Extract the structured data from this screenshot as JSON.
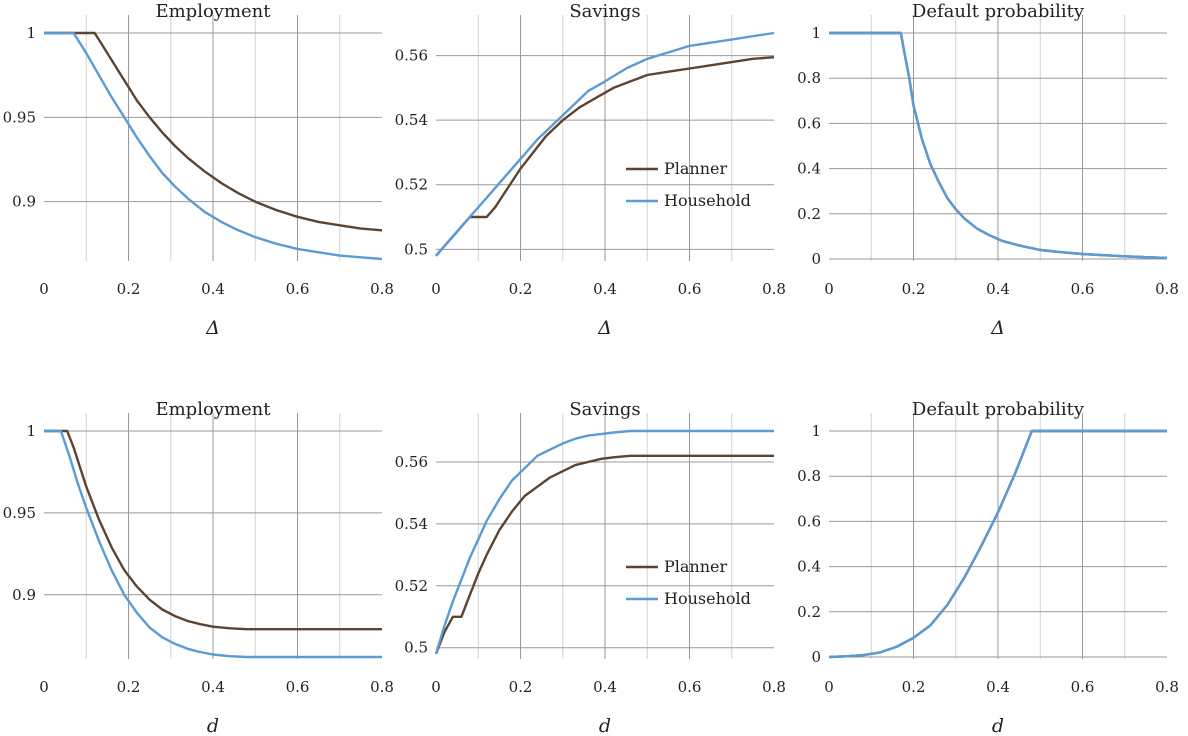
{
  "colors": {
    "planner": "#5c4431",
    "household": "#5b9bd5",
    "grid_major": "#999999",
    "grid_minor": "#d4d4d4"
  },
  "chart_data": [
    {
      "type": "line",
      "title": "Employment",
      "xlabel": "Δ",
      "ylabel": "",
      "xlim": [
        0,
        0.8
      ],
      "ylim": [
        0.866,
        1.0
      ],
      "xticks": [
        0,
        0.2,
        0.4,
        0.6,
        0.8
      ],
      "xtick_labels": [
        "0",
        "0.2",
        "0.4",
        "0.6",
        "0.8"
      ],
      "yticks": [
        0.9,
        0.95,
        1.0
      ],
      "ytick_labels": [
        "0.9",
        "0.95",
        "1"
      ],
      "grid": true,
      "legend": null,
      "series": [
        {
          "color": "#5c4431",
          "x": [
            0,
            0.12,
            0.14,
            0.16,
            0.18,
            0.2,
            0.22,
            0.25,
            0.28,
            0.31,
            0.34,
            0.38,
            0.42,
            0.46,
            0.5,
            0.55,
            0.6,
            0.65,
            0.7,
            0.75,
            0.8
          ],
          "y": [
            1.0,
            1.0,
            0.992,
            0.984,
            0.976,
            0.968,
            0.96,
            0.95,
            0.941,
            0.933,
            0.926,
            0.918,
            0.911,
            0.905,
            0.9,
            0.895,
            0.891,
            0.888,
            0.886,
            0.884,
            0.883
          ]
        },
        {
          "color": "#5b9bd5",
          "x": [
            0,
            0.07,
            0.1,
            0.13,
            0.16,
            0.19,
            0.22,
            0.25,
            0.28,
            0.31,
            0.34,
            0.38,
            0.42,
            0.46,
            0.5,
            0.55,
            0.6,
            0.65,
            0.7,
            0.75,
            0.8
          ],
          "y": [
            1.0,
            1.0,
            0.988,
            0.975,
            0.962,
            0.95,
            0.938,
            0.927,
            0.917,
            0.909,
            0.902,
            0.894,
            0.888,
            0.883,
            0.879,
            0.875,
            0.872,
            0.87,
            0.868,
            0.867,
            0.866
          ]
        }
      ]
    },
    {
      "type": "line",
      "title": "Savings",
      "xlabel": "Δ",
      "ylabel": "",
      "xlim": [
        0,
        0.8
      ],
      "ylim": [
        0.497,
        0.567
      ],
      "xticks": [
        0,
        0.2,
        0.4,
        0.6,
        0.8
      ],
      "xtick_labels": [
        "0",
        "0.2",
        "0.4",
        "0.6",
        "0.8"
      ],
      "yticks": [
        0.5,
        0.52,
        0.54,
        0.56
      ],
      "ytick_labels": [
        "0.5",
        "0.52",
        "0.54",
        "0.56"
      ],
      "grid": true,
      "legend": "center-right",
      "series": [
        {
          "name": "Planner",
          "color": "#5c4431",
          "x": [
            0,
            0.02,
            0.04,
            0.06,
            0.08,
            0.12,
            0.14,
            0.17,
            0.2,
            0.23,
            0.26,
            0.3,
            0.34,
            0.38,
            0.42,
            0.46,
            0.5,
            0.55,
            0.6,
            0.65,
            0.7,
            0.75,
            0.8
          ],
          "y": [
            0.498,
            0.501,
            0.504,
            0.507,
            0.51,
            0.51,
            0.513,
            0.519,
            0.525,
            0.53,
            0.535,
            0.54,
            0.544,
            0.547,
            0.55,
            0.552,
            0.554,
            0.555,
            0.556,
            0.557,
            0.558,
            0.559,
            0.5595
          ]
        },
        {
          "name": "Household",
          "color": "#5b9bd5",
          "x": [
            0,
            0.04,
            0.08,
            0.12,
            0.16,
            0.2,
            0.24,
            0.28,
            0.32,
            0.36,
            0.4,
            0.45,
            0.5,
            0.55,
            0.6,
            0.65,
            0.7,
            0.75,
            0.8
          ],
          "y": [
            0.498,
            0.504,
            0.51,
            0.516,
            0.522,
            0.528,
            0.534,
            0.539,
            0.544,
            0.549,
            0.552,
            0.556,
            0.559,
            0.561,
            0.563,
            0.564,
            0.565,
            0.566,
            0.567
          ]
        }
      ]
    },
    {
      "type": "line",
      "title": "Default probability",
      "xlabel": "Δ",
      "ylabel": "",
      "xlim": [
        0,
        0.8
      ],
      "ylim": [
        0,
        1.0
      ],
      "xticks": [
        0,
        0.2,
        0.4,
        0.6,
        0.8
      ],
      "xtick_labels": [
        "0",
        "0.2",
        "0.4",
        "0.6",
        "0.8"
      ],
      "yticks": [
        0,
        0.2,
        0.4,
        0.6,
        0.8,
        1.0
      ],
      "ytick_labels": [
        "0",
        "0.2",
        "0.4",
        "0.6",
        "0.8",
        "1"
      ],
      "grid": true,
      "legend": null,
      "series": [
        {
          "color": "#5c4431",
          "x": [
            0,
            0.17,
            0.18,
            0.19,
            0.2,
            0.22,
            0.24,
            0.26,
            0.28,
            0.3,
            0.32,
            0.35,
            0.38,
            0.41,
            0.45,
            0.5,
            0.55,
            0.6,
            0.65,
            0.7,
            0.75,
            0.8
          ],
          "y": [
            1.0,
            1.0,
            0.9,
            0.8,
            0.68,
            0.53,
            0.42,
            0.34,
            0.27,
            0.22,
            0.18,
            0.135,
            0.105,
            0.08,
            0.06,
            0.04,
            0.03,
            0.022,
            0.017,
            0.012,
            0.008,
            0.005
          ]
        },
        {
          "color": "#5b9bd5",
          "x": [
            0,
            0.17,
            0.18,
            0.19,
            0.2,
            0.22,
            0.24,
            0.26,
            0.28,
            0.3,
            0.32,
            0.35,
            0.38,
            0.41,
            0.45,
            0.5,
            0.55,
            0.6,
            0.65,
            0.7,
            0.75,
            0.8
          ],
          "y": [
            1.0,
            1.0,
            0.9,
            0.8,
            0.68,
            0.53,
            0.42,
            0.34,
            0.27,
            0.22,
            0.18,
            0.135,
            0.105,
            0.08,
            0.06,
            0.04,
            0.03,
            0.022,
            0.017,
            0.012,
            0.008,
            0.005
          ]
        }
      ]
    },
    {
      "type": "line",
      "title": "Employment",
      "xlabel": "d",
      "ylabel": "",
      "xlim": [
        0,
        0.8
      ],
      "ylim": [
        0.862,
        1.0
      ],
      "xticks": [
        0,
        0.2,
        0.4,
        0.6,
        0.8
      ],
      "xtick_labels": [
        "0",
        "0.2",
        "0.4",
        "0.6",
        "0.8"
      ],
      "yticks": [
        0.9,
        0.95,
        1.0
      ],
      "ytick_labels": [
        "0.9",
        "0.95",
        "1"
      ],
      "grid": true,
      "legend": null,
      "series": [
        {
          "color": "#5c4431",
          "x": [
            0,
            0.055,
            0.07,
            0.1,
            0.13,
            0.16,
            0.19,
            0.22,
            0.25,
            0.28,
            0.31,
            0.34,
            0.37,
            0.4,
            0.44,
            0.48,
            0.55,
            0.65,
            0.8
          ],
          "y": [
            1.0,
            1.0,
            0.99,
            0.966,
            0.946,
            0.929,
            0.915,
            0.905,
            0.897,
            0.891,
            0.887,
            0.884,
            0.882,
            0.8805,
            0.8795,
            0.879,
            0.879,
            0.879,
            0.879
          ]
        },
        {
          "color": "#5b9bd5",
          "x": [
            0,
            0.04,
            0.06,
            0.08,
            0.1,
            0.13,
            0.16,
            0.19,
            0.22,
            0.25,
            0.28,
            0.31,
            0.34,
            0.37,
            0.4,
            0.44,
            0.48,
            0.55,
            0.65,
            0.8
          ],
          "y": [
            1.0,
            1.0,
            0.985,
            0.968,
            0.953,
            0.933,
            0.915,
            0.9,
            0.889,
            0.88,
            0.874,
            0.87,
            0.867,
            0.865,
            0.8635,
            0.8625,
            0.862,
            0.862,
            0.862,
            0.862
          ]
        }
      ]
    },
    {
      "type": "line",
      "title": "Savings",
      "xlabel": "d",
      "ylabel": "",
      "xlim": [
        0,
        0.8
      ],
      "ylim": [
        0.497,
        0.57
      ],
      "xticks": [
        0,
        0.2,
        0.4,
        0.6,
        0.8
      ],
      "xtick_labels": [
        "0",
        "0.2",
        "0.4",
        "0.6",
        "0.8"
      ],
      "yticks": [
        0.5,
        0.52,
        0.54,
        0.56
      ],
      "ytick_labels": [
        "0.5",
        "0.52",
        "0.54",
        "0.56"
      ],
      "grid": true,
      "legend": "center-right",
      "series": [
        {
          "name": "Planner",
          "color": "#5c4431",
          "x": [
            0,
            0.02,
            0.04,
            0.06,
            0.08,
            0.1,
            0.12,
            0.15,
            0.18,
            0.21,
            0.24,
            0.27,
            0.3,
            0.33,
            0.36,
            0.39,
            0.42,
            0.46,
            0.5,
            0.6,
            0.8
          ],
          "y": [
            0.498,
            0.505,
            0.51,
            0.51,
            0.517,
            0.524,
            0.53,
            0.538,
            0.544,
            0.549,
            0.552,
            0.555,
            0.557,
            0.559,
            0.56,
            0.561,
            0.5615,
            0.562,
            0.562,
            0.562,
            0.562
          ]
        },
        {
          "name": "Household",
          "color": "#5b9bd5",
          "x": [
            0,
            0.02,
            0.04,
            0.06,
            0.08,
            0.1,
            0.12,
            0.15,
            0.18,
            0.21,
            0.24,
            0.27,
            0.3,
            0.33,
            0.36,
            0.39,
            0.42,
            0.46,
            0.5,
            0.6,
            0.8
          ],
          "y": [
            0.498,
            0.507,
            0.515,
            0.522,
            0.529,
            0.535,
            0.541,
            0.548,
            0.554,
            0.558,
            0.562,
            0.564,
            0.566,
            0.5675,
            0.5685,
            0.569,
            0.5695,
            0.57,
            0.57,
            0.57,
            0.57
          ]
        }
      ]
    },
    {
      "type": "line",
      "title": "Default probability",
      "xlabel": "d",
      "ylabel": "",
      "xlim": [
        0,
        0.8
      ],
      "ylim": [
        0,
        1.0
      ],
      "xticks": [
        0,
        0.2,
        0.4,
        0.6,
        0.8
      ],
      "xtick_labels": [
        "0",
        "0.2",
        "0.4",
        "0.6",
        "0.8"
      ],
      "yticks": [
        0,
        0.2,
        0.4,
        0.6,
        0.8,
        1.0
      ],
      "ytick_labels": [
        "0",
        "0.2",
        "0.4",
        "0.6",
        "0.8",
        "1"
      ],
      "grid": true,
      "legend": null,
      "series": [
        {
          "color": "#5c4431",
          "x": [
            0,
            0.04,
            0.08,
            0.12,
            0.16,
            0.2,
            0.24,
            0.28,
            0.32,
            0.36,
            0.4,
            0.44,
            0.48,
            0.5,
            0.6,
            0.7,
            0.8
          ],
          "y": [
            0,
            0.003,
            0.008,
            0.02,
            0.045,
            0.085,
            0.14,
            0.23,
            0.35,
            0.49,
            0.64,
            0.81,
            1.0,
            1.0,
            1.0,
            1.0,
            1.0
          ]
        },
        {
          "color": "#5b9bd5",
          "x": [
            0,
            0.04,
            0.08,
            0.12,
            0.16,
            0.2,
            0.24,
            0.28,
            0.32,
            0.36,
            0.4,
            0.44,
            0.48,
            0.5,
            0.6,
            0.7,
            0.8
          ],
          "y": [
            0,
            0.003,
            0.008,
            0.02,
            0.045,
            0.085,
            0.14,
            0.23,
            0.35,
            0.49,
            0.64,
            0.81,
            1.0,
            1.0,
            1.0,
            1.0,
            1.0
          ]
        }
      ]
    }
  ]
}
